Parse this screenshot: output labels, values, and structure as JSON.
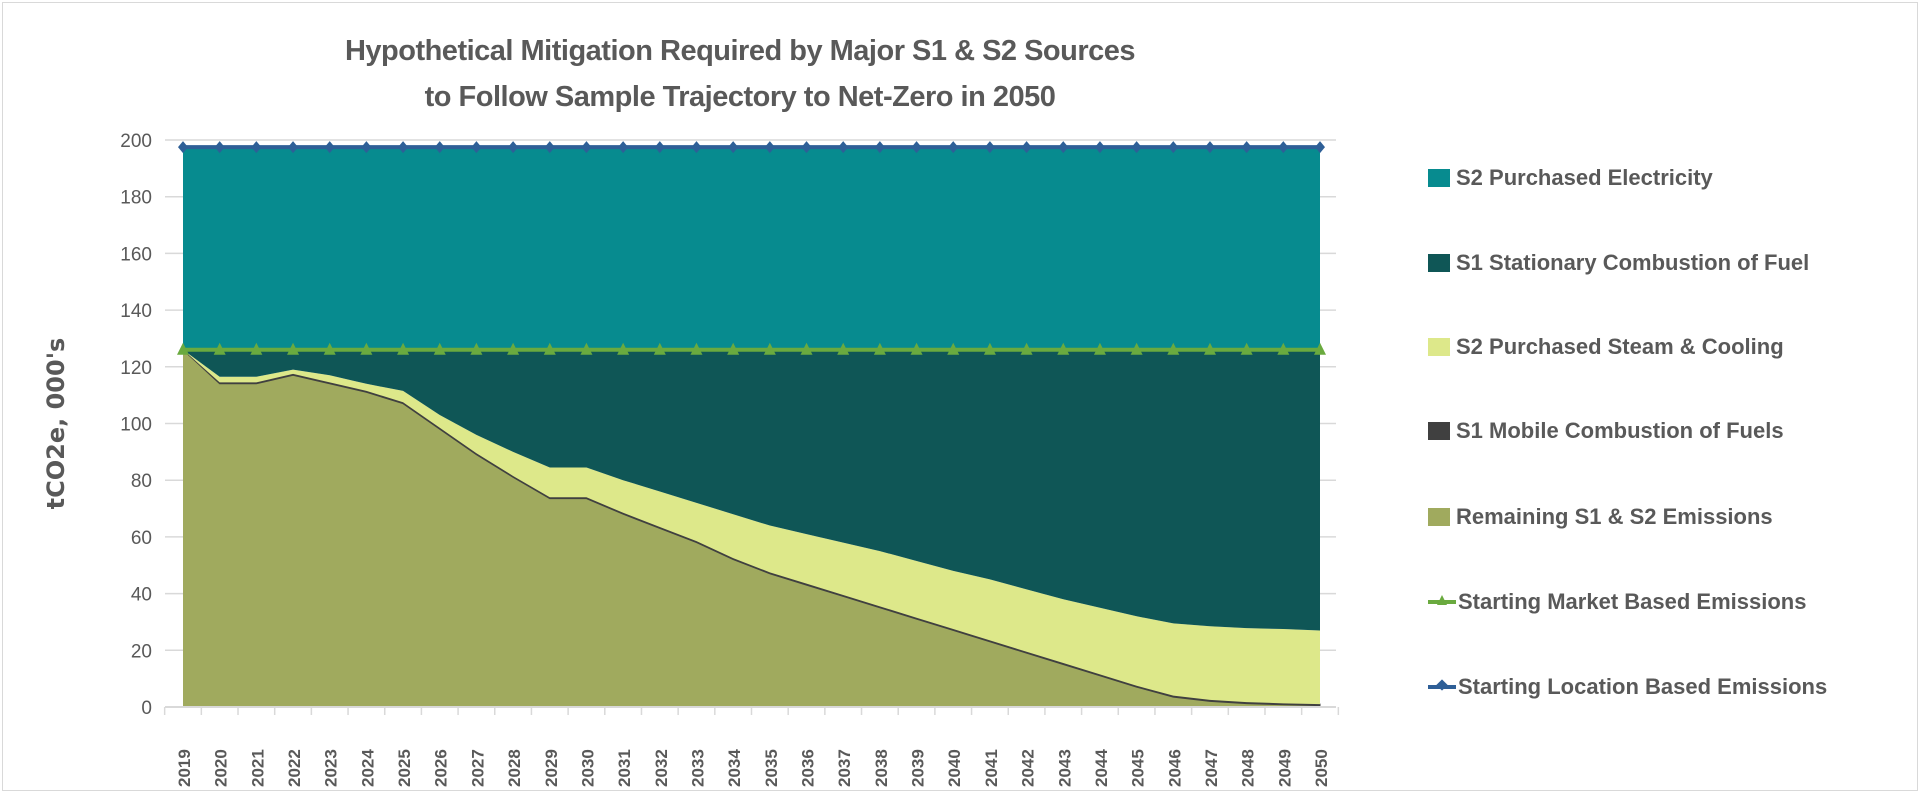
{
  "chart_data": {
    "type": "area",
    "stacked": true,
    "title": "Hypothetical Mitigation Required by Major S1 & S2 Sources",
    "subtitle": "to Follow Sample Trajectory to Net-Zero in 2050",
    "xlabel": "",
    "ylabel": "tCO2e, 000's",
    "ylim": [
      0,
      200
    ],
    "yticks": [
      0,
      20,
      40,
      60,
      80,
      100,
      120,
      140,
      160,
      180,
      200
    ],
    "grid": true,
    "legend_position": "right",
    "categories": [
      "2019",
      "2020",
      "2021",
      "2022",
      "2023",
      "2024",
      "2025",
      "2026",
      "2027",
      "2028",
      "2029",
      "2030",
      "2031",
      "2032",
      "2033",
      "2034",
      "2035",
      "2036",
      "2037",
      "2038",
      "2039",
      "2040",
      "2041",
      "2042",
      "2043",
      "2044",
      "2045",
      "2046",
      "2047",
      "2048",
      "2049",
      "2050"
    ],
    "series": [
      {
        "name": "Remaining S1 & S2 Emissions",
        "kind": "area",
        "color": "#A0AA5E",
        "values": [
          126,
          114,
          114,
          117,
          114,
          111,
          107,
          98,
          89,
          81,
          73.5,
          73.5,
          68,
          63,
          58,
          52,
          47,
          43,
          39,
          35,
          31,
          27,
          23,
          19,
          15,
          11,
          7,
          3.5,
          2,
          1.2,
          0.8,
          0.5
        ]
      },
      {
        "name": "S1 Mobile Combustion of Fuels",
        "kind": "area",
        "color": "#404040",
        "values": [
          0,
          0.5,
          0.5,
          0.5,
          0.5,
          0.5,
          0.5,
          0.5,
          0.5,
          0.5,
          0.5,
          0.5,
          0.5,
          0.5,
          0.5,
          0.5,
          0.5,
          0.5,
          0.5,
          0.5,
          0.5,
          0.5,
          0.5,
          0.5,
          0.5,
          0.5,
          0.5,
          0.5,
          0.5,
          0.5,
          0.5,
          0.5
        ]
      },
      {
        "name": "S2 Purchased Steam & Cooling",
        "kind": "area",
        "color": "#DDE88A",
        "values": [
          0,
          2,
          2,
          1.5,
          2.5,
          2.5,
          4,
          4.5,
          6.5,
          8.5,
          10.5,
          10.5,
          11.5,
          12.5,
          13.5,
          15.5,
          16.5,
          17.5,
          18.5,
          19.5,
          20,
          20.5,
          21.5,
          22,
          22.5,
          23.5,
          24.5,
          25.5,
          26,
          26.1,
          26.2,
          26
        ]
      },
      {
        "name": "S1 Stationary Combustion of Fuel",
        "kind": "area",
        "color": "#0F5656",
        "values": [
          0,
          9.5,
          9.5,
          7,
          9,
          12,
          14.5,
          23,
          30,
          36,
          41.5,
          41.5,
          46,
          50,
          54,
          58,
          62,
          65,
          68,
          71,
          74.5,
          78,
          81,
          84.5,
          88,
          91,
          94,
          96.5,
          97.5,
          98.2,
          98.5,
          99
        ]
      },
      {
        "name": "S2 Purchased Electricity",
        "kind": "area",
        "color": "#078B8F",
        "values": [
          71.5,
          71.5,
          71.5,
          71.5,
          71.5,
          71.5,
          71.5,
          71.5,
          71.5,
          71.5,
          71.5,
          71.5,
          71.5,
          71.5,
          71.5,
          71.5,
          71.5,
          71.5,
          71.5,
          71.5,
          71.5,
          71.5,
          71.5,
          71.5,
          71.5,
          71.5,
          71.5,
          71.5,
          71.5,
          71.5,
          71.5,
          71.5
        ]
      },
      {
        "name": "Starting Market Based Emissions",
        "kind": "line",
        "marker": "triangle",
        "color": "#6AAA3F",
        "constant": 126
      },
      {
        "name": "Starting Location Based Emissions",
        "kind": "line",
        "marker": "diamond",
        "color": "#2E5F97",
        "constant": 197.5
      }
    ],
    "legend_order": [
      "S2 Purchased Electricity",
      "S1 Stationary Combustion of Fuel",
      "S2 Purchased Steam & Cooling",
      "S1 Mobile Combustion of Fuels",
      "Remaining S1 & S2 Emissions",
      "Starting Market Based Emissions",
      "Starting Location Based Emissions"
    ]
  }
}
